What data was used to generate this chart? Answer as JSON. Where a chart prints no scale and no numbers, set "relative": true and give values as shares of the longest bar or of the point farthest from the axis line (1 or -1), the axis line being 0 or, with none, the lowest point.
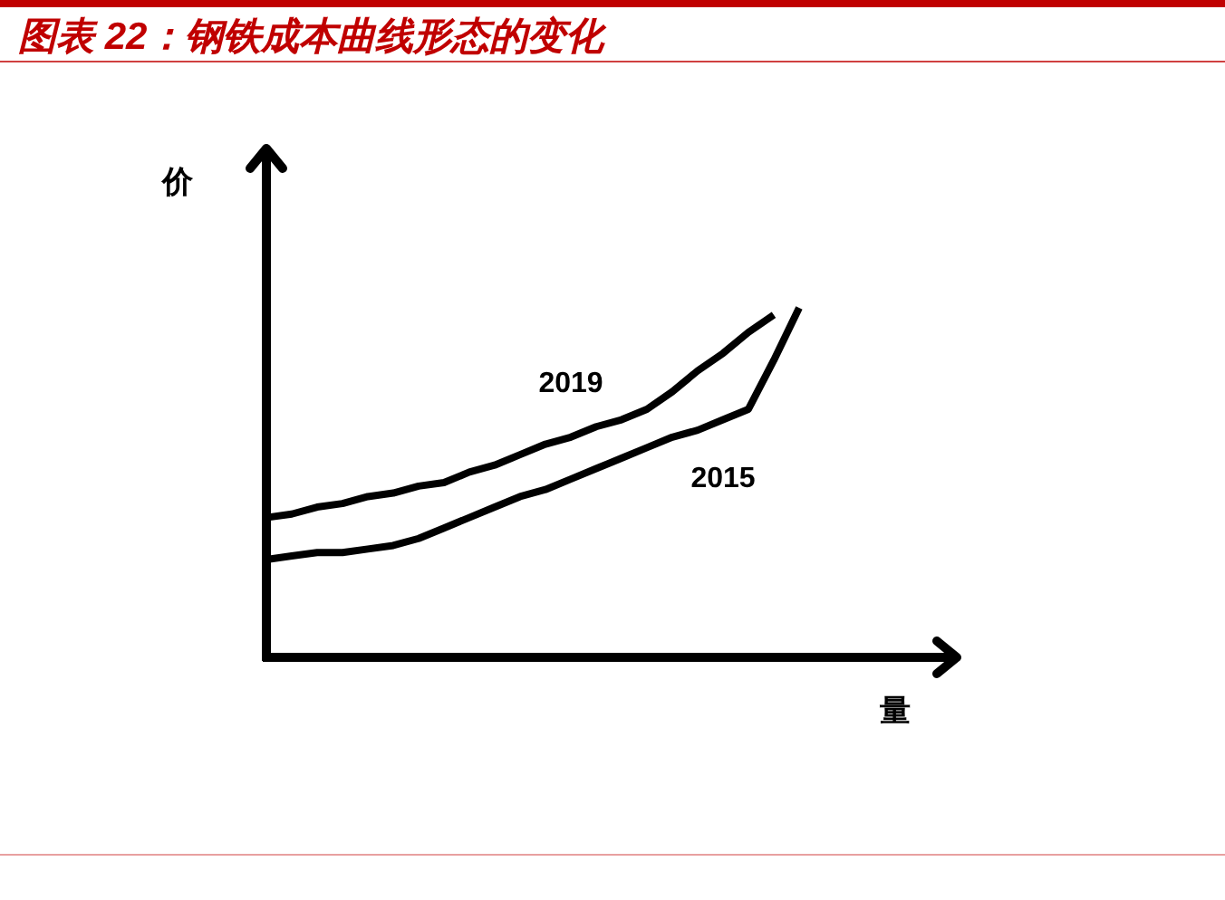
{
  "chart_data": {
    "type": "line",
    "title": "图表 22：钢铁成本曲线形态的变化",
    "xlabel": "量",
    "ylabel": "价",
    "categories": [
      null,
      null,
      null,
      null,
      null,
      null,
      null,
      null,
      null,
      null,
      null,
      null,
      null,
      null,
      null,
      null,
      null,
      null,
      null,
      null,
      null,
      null
    ],
    "relative": true,
    "line_style": "solid",
    "series": [
      {
        "name": "2019",
        "color": "#000000",
        "values": [
          0.4,
          0.41,
          0.43,
          0.44,
          0.46,
          0.47,
          0.49,
          0.5,
          0.53,
          0.55,
          0.58,
          0.61,
          0.63,
          0.66,
          0.68,
          0.71,
          0.76,
          0.82,
          0.87,
          0.93,
          0.98,
          null
        ]
      },
      {
        "name": "2015",
        "color": "#000000",
        "values": [
          0.28,
          0.29,
          0.3,
          0.3,
          0.31,
          0.32,
          0.34,
          0.37,
          0.4,
          0.43,
          0.46,
          0.48,
          0.51,
          0.54,
          0.57,
          0.6,
          0.63,
          0.65,
          0.68,
          0.71,
          0.85,
          1.0
        ]
      }
    ]
  }
}
